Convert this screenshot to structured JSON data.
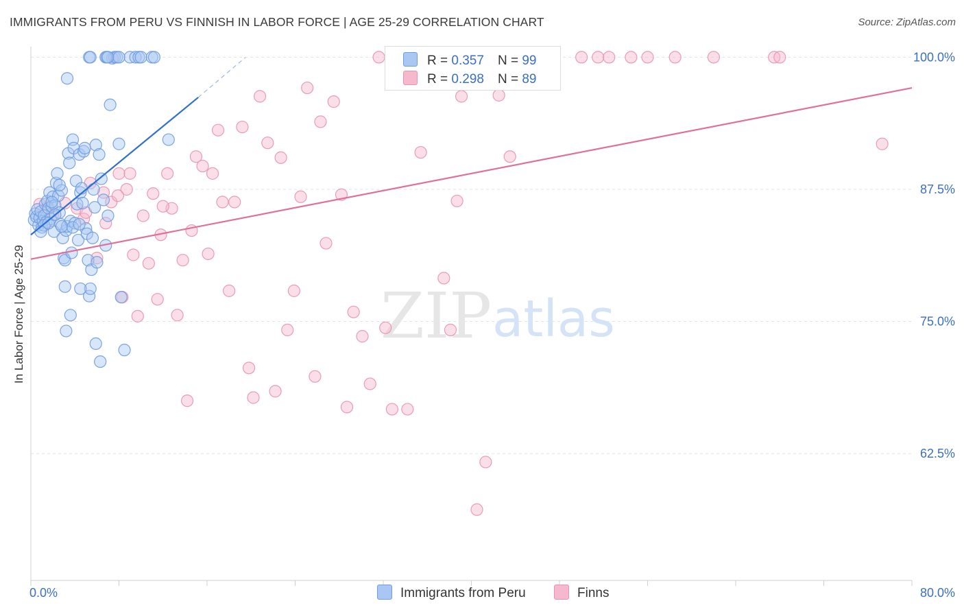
{
  "header": {
    "title": "IMMIGRANTS FROM PERU VS FINNISH IN LABOR FORCE | AGE 25-29 CORRELATION CHART",
    "source": "Source: ZipAtlas.com"
  },
  "watermark": {
    "zip": "ZIP",
    "atlas": "atlas"
  },
  "legend_top": [
    {
      "r_label": "R =",
      "r_value": "0.357",
      "n_label": "N =",
      "n_value": "99"
    },
    {
      "r_label": "R =",
      "r_value": "0.298",
      "n_label": "N =",
      "n_value": "89"
    }
  ],
  "legend_bottom": [
    {
      "label": "Immigrants from Peru"
    },
    {
      "label": "Finns"
    }
  ],
  "colors": {
    "peru_fill": "#a9c7f2",
    "peru_stroke": "#6f9bdf",
    "peru_line": "#2f6fcf",
    "finns_fill": "#f6b8cc",
    "finns_stroke": "#e892ae",
    "finns_line": "#e0709a",
    "tick_label": "#3a6fc4",
    "grid": "#e3e3e3"
  },
  "chart_data": {
    "type": "scatter",
    "title": "IMMIGRANTS FROM PERU VS FINNISH IN LABOR FORCE | AGE 25-29 CORRELATION CHART",
    "xlabel": "",
    "ylabel": "In Labor Force | Age 25-29",
    "xlim": [
      0,
      80
    ],
    "ylim": [
      50.5,
      101
    ],
    "x_tick_labels": [
      "0.0%",
      "80.0%"
    ],
    "y_ticks": [
      62.5,
      75.0,
      87.5,
      100.0
    ],
    "y_tick_labels": [
      "62.5%",
      "75.0%",
      "87.5%",
      "100.0%"
    ],
    "grid": "horizontal dashed",
    "legend_placement": "top-center",
    "series": [
      {
        "name": "Immigrants from Peru",
        "r": 0.357,
        "n": 99,
        "trend": {
          "x": [
            0,
            15.2
          ],
          "y": [
            83.2,
            96.2
          ],
          "dashed_to": [
            19.5,
            100.0
          ]
        },
        "points": [
          [
            0.3,
            84.6
          ],
          [
            0.4,
            85.2
          ],
          [
            0.5,
            84.9
          ],
          [
            0.6,
            85.6
          ],
          [
            0.7,
            84.1
          ],
          [
            0.8,
            84.8
          ],
          [
            0.9,
            85.4
          ],
          [
            1.0,
            83.9
          ],
          [
            1.1,
            84.5
          ],
          [
            1.2,
            85.0
          ],
          [
            1.3,
            86.1
          ],
          [
            1.4,
            84.4
          ],
          [
            1.5,
            86.4
          ],
          [
            1.6,
            85.7
          ],
          [
            1.7,
            87.2
          ],
          [
            1.8,
            84.7
          ],
          [
            1.9,
            85.9
          ],
          [
            2.0,
            86.8
          ],
          [
            2.1,
            83.5
          ],
          [
            2.2,
            86.0
          ],
          [
            2.3,
            88.1
          ],
          [
            2.4,
            89.0
          ],
          [
            2.5,
            86.9
          ],
          [
            2.6,
            85.3
          ],
          [
            2.7,
            84.2
          ],
          [
            2.8,
            87.4
          ],
          [
            2.9,
            82.9
          ],
          [
            3.0,
            81.0
          ],
          [
            3.1,
            80.8
          ],
          [
            3.2,
            83.6
          ],
          [
            3.3,
            84.0
          ],
          [
            3.4,
            90.9
          ],
          [
            3.5,
            90.0
          ],
          [
            3.6,
            84.5
          ],
          [
            3.7,
            81.5
          ],
          [
            3.8,
            92.2
          ],
          [
            3.9,
            91.4
          ],
          [
            4.0,
            84.3
          ],
          [
            4.1,
            88.3
          ],
          [
            4.2,
            86.1
          ],
          [
            4.3,
            82.7
          ],
          [
            4.4,
            90.8
          ],
          [
            4.5,
            87.2
          ],
          [
            4.6,
            87.6
          ],
          [
            4.7,
            86.2
          ],
          [
            4.8,
            91.1
          ],
          [
            4.9,
            91.4
          ],
          [
            5.0,
            83.8
          ],
          [
            5.1,
            83.3
          ],
          [
            5.2,
            80.8
          ],
          [
            5.3,
            77.4
          ],
          [
            5.4,
            78.1
          ],
          [
            5.5,
            79.9
          ],
          [
            5.6,
            82.9
          ],
          [
            5.7,
            87.5
          ],
          [
            5.8,
            85.8
          ],
          [
            5.9,
            91.7
          ],
          [
            6.0,
            80.6
          ],
          [
            6.2,
            90.8
          ],
          [
            6.4,
            88.5
          ],
          [
            6.6,
            86.5
          ],
          [
            6.8,
            82.2
          ],
          [
            7.0,
            85.0
          ],
          [
            7.2,
            95.5
          ],
          [
            7.4,
            99.9
          ],
          [
            7.6,
            100.0
          ],
          [
            7.8,
            100.0
          ],
          [
            8.0,
            91.8
          ],
          [
            8.2,
            77.3
          ],
          [
            8.5,
            72.3
          ],
          [
            9.0,
            100.0
          ],
          [
            9.5,
            100.0
          ],
          [
            9.8,
            100.0
          ],
          [
            10.0,
            100.0
          ],
          [
            12.5,
            92.2
          ],
          [
            5.3,
            100.0
          ],
          [
            5.4,
            100.0
          ],
          [
            6.8,
            100.0
          ],
          [
            6.9,
            100.0
          ],
          [
            7.0,
            100.0
          ],
          [
            8.0,
            100.0
          ],
          [
            11.0,
            100.0
          ],
          [
            11.2,
            100.0
          ],
          [
            3.2,
            74.1
          ],
          [
            3.6,
            75.6
          ],
          [
            3.1,
            78.3
          ],
          [
            4.5,
            78.1
          ],
          [
            5.9,
            72.9
          ],
          [
            6.3,
            71.2
          ],
          [
            3.3,
            98.0
          ],
          [
            2.6,
            87.9
          ],
          [
            1.9,
            86.3
          ],
          [
            1.2,
            84.1
          ],
          [
            0.9,
            83.5
          ],
          [
            1.6,
            84.3
          ],
          [
            2.2,
            85.1
          ],
          [
            2.8,
            84.0
          ],
          [
            3.8,
            83.9
          ],
          [
            4.4,
            84.2
          ]
        ]
      },
      {
        "name": "Finns",
        "r": 0.298,
        "n": 89,
        "trend": {
          "x": [
            0,
            80
          ],
          "y": [
            80.9,
            97.1
          ]
        },
        "points": [
          [
            0.8,
            86.1
          ],
          [
            1.5,
            85.8
          ],
          [
            2.0,
            85.1
          ],
          [
            3.1,
            86.2
          ],
          [
            4.2,
            85.7
          ],
          [
            4.8,
            84.7
          ],
          [
            5.4,
            88.1
          ],
          [
            6.0,
            81.0
          ],
          [
            6.8,
            84.3
          ],
          [
            7.3,
            86.3
          ],
          [
            8.0,
            89.0
          ],
          [
            8.3,
            77.3
          ],
          [
            8.7,
            87.5
          ],
          [
            9.3,
            81.3
          ],
          [
            9.7,
            75.5
          ],
          [
            10.2,
            85.0
          ],
          [
            10.7,
            80.5
          ],
          [
            11.1,
            87.1
          ],
          [
            11.5,
            77.1
          ],
          [
            11.8,
            83.2
          ],
          [
            12.4,
            89.0
          ],
          [
            12.8,
            85.7
          ],
          [
            13.3,
            75.6
          ],
          [
            13.8,
            80.8
          ],
          [
            14.2,
            67.5
          ],
          [
            14.6,
            83.6
          ],
          [
            15.0,
            90.6
          ],
          [
            15.6,
            89.7
          ],
          [
            16.1,
            81.4
          ],
          [
            16.5,
            89.0
          ],
          [
            17.0,
            93.1
          ],
          [
            17.4,
            86.3
          ],
          [
            18.0,
            77.9
          ],
          [
            18.5,
            86.3
          ],
          [
            19.2,
            93.4
          ],
          [
            19.8,
            70.6
          ],
          [
            20.2,
            67.8
          ],
          [
            20.8,
            96.3
          ],
          [
            21.5,
            91.9
          ],
          [
            22.2,
            68.4
          ],
          [
            22.7,
            90.5
          ],
          [
            23.3,
            74.2
          ],
          [
            23.9,
            77.9
          ],
          [
            24.5,
            86.8
          ],
          [
            25.1,
            97.1
          ],
          [
            25.8,
            69.8
          ],
          [
            26.3,
            93.9
          ],
          [
            26.8,
            82.4
          ],
          [
            27.5,
            95.8
          ],
          [
            28.2,
            87.0
          ],
          [
            28.7,
            66.9
          ],
          [
            29.3,
            75.9
          ],
          [
            30.1,
            73.6
          ],
          [
            30.8,
            69.1
          ],
          [
            31.6,
            100.0
          ],
          [
            32.2,
            74.4
          ],
          [
            32.8,
            66.7
          ],
          [
            33.7,
            100.0
          ],
          [
            34.2,
            66.7
          ],
          [
            35.4,
            91.0
          ],
          [
            36.5,
            100.0
          ],
          [
            37.5,
            79.1
          ],
          [
            38.1,
            74.2
          ],
          [
            38.7,
            86.4
          ],
          [
            39.1,
            96.3
          ],
          [
            39.8,
            100.0
          ],
          [
            40.5,
            100.0
          ],
          [
            41.3,
            61.7
          ],
          [
            40.5,
            57.2
          ],
          [
            42.5,
            96.4
          ],
          [
            43.5,
            90.6
          ],
          [
            44.0,
            100.0
          ],
          [
            44.5,
            100.0
          ],
          [
            47.0,
            100.0
          ],
          [
            50.0,
            100.0
          ],
          [
            51.5,
            100.0
          ],
          [
            52.5,
            100.0
          ],
          [
            54.5,
            100.0
          ],
          [
            56.0,
            100.0
          ],
          [
            58.5,
            100.0
          ],
          [
            62.0,
            100.0
          ],
          [
            67.5,
            100.0
          ],
          [
            68.0,
            100.0
          ],
          [
            77.3,
            91.8
          ],
          [
            6.6,
            87.2
          ],
          [
            7.9,
            86.9
          ],
          [
            5.0,
            85.3
          ],
          [
            9.0,
            89.0
          ],
          [
            12.0,
            85.9
          ]
        ]
      }
    ]
  }
}
